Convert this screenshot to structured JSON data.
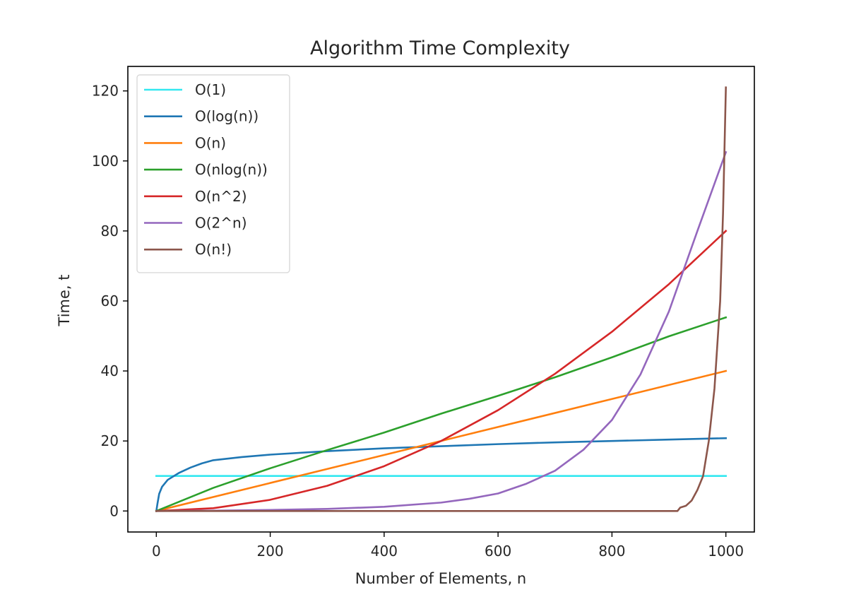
{
  "chart_data": {
    "type": "line",
    "title": "Algorithm Time Complexity",
    "xlabel": "Number of Elements, n",
    "ylabel": "Time, t",
    "xlim": [
      -50,
      1050
    ],
    "ylim": [
      -6,
      127
    ],
    "x_ticks": [
      0,
      200,
      400,
      600,
      800,
      1000
    ],
    "y_ticks": [
      0,
      20,
      40,
      60,
      80,
      100,
      120
    ],
    "grid": false,
    "legend": "top-left",
    "series": [
      {
        "name": "O(1)",
        "color": "#33e8f0",
        "points": [
          [
            0,
            10
          ],
          [
            1000,
            10
          ]
        ]
      },
      {
        "name": "O(log(n))",
        "color": "#1f77b4",
        "points": [
          [
            0,
            0
          ],
          [
            2,
            2.1
          ],
          [
            5,
            4.9
          ],
          [
            10,
            6.9
          ],
          [
            20,
            8.9
          ],
          [
            40,
            10.9
          ],
          [
            60,
            12.4
          ],
          [
            80,
            13.6
          ],
          [
            100,
            14.5
          ],
          [
            150,
            15.4
          ],
          [
            200,
            16.1
          ],
          [
            300,
            17.1
          ],
          [
            400,
            17.9
          ],
          [
            500,
            18.5
          ],
          [
            600,
            19.1
          ],
          [
            700,
            19.6
          ],
          [
            800,
            20.0
          ],
          [
            900,
            20.4
          ],
          [
            1000,
            20.8
          ]
        ]
      },
      {
        "name": "O(n)",
        "color": "#ff7f0e",
        "points": [
          [
            0,
            0
          ],
          [
            1000,
            40
          ]
        ]
      },
      {
        "name": "O(nlog(n))",
        "color": "#2ca02c",
        "points": [
          [
            0,
            0
          ],
          [
            100,
            6.6
          ],
          [
            200,
            12.2
          ],
          [
            300,
            17.4
          ],
          [
            400,
            22.4
          ],
          [
            500,
            27.8
          ],
          [
            600,
            32.9
          ],
          [
            700,
            38.2
          ],
          [
            800,
            43.9
          ],
          [
            900,
            49.9
          ],
          [
            1000,
            55.3
          ]
        ]
      },
      {
        "name": "O(n^2)",
        "color": "#d62728",
        "points": [
          [
            0,
            0
          ],
          [
            100,
            0.8
          ],
          [
            200,
            3.2
          ],
          [
            300,
            7.2
          ],
          [
            400,
            12.8
          ],
          [
            500,
            20
          ],
          [
            600,
            28.8
          ],
          [
            700,
            39.2
          ],
          [
            800,
            51.2
          ],
          [
            900,
            64.8
          ],
          [
            1000,
            80
          ]
        ]
      },
      {
        "name": "O(2^n)",
        "color": "#9467bd",
        "points": [
          [
            0,
            0
          ],
          [
            100,
            0.1
          ],
          [
            200,
            0.3
          ],
          [
            300,
            0.6
          ],
          [
            400,
            1.2
          ],
          [
            500,
            2.4
          ],
          [
            550,
            3.5
          ],
          [
            600,
            5
          ],
          [
            650,
            7.8
          ],
          [
            700,
            11.5
          ],
          [
            750,
            17.5
          ],
          [
            800,
            26
          ],
          [
            850,
            39
          ],
          [
            900,
            57
          ],
          [
            950,
            80
          ],
          [
            1000,
            102.5
          ]
        ]
      },
      {
        "name": "O(n!)",
        "color": "#8c564b",
        "points": [
          [
            0,
            0
          ],
          [
            900,
            0
          ],
          [
            915,
            0
          ],
          [
            920,
            1
          ],
          [
            930,
            1.5
          ],
          [
            940,
            3
          ],
          [
            950,
            6
          ],
          [
            960,
            10
          ],
          [
            970,
            20
          ],
          [
            980,
            35
          ],
          [
            990,
            60
          ],
          [
            995,
            85
          ],
          [
            1000,
            121
          ]
        ]
      }
    ]
  }
}
